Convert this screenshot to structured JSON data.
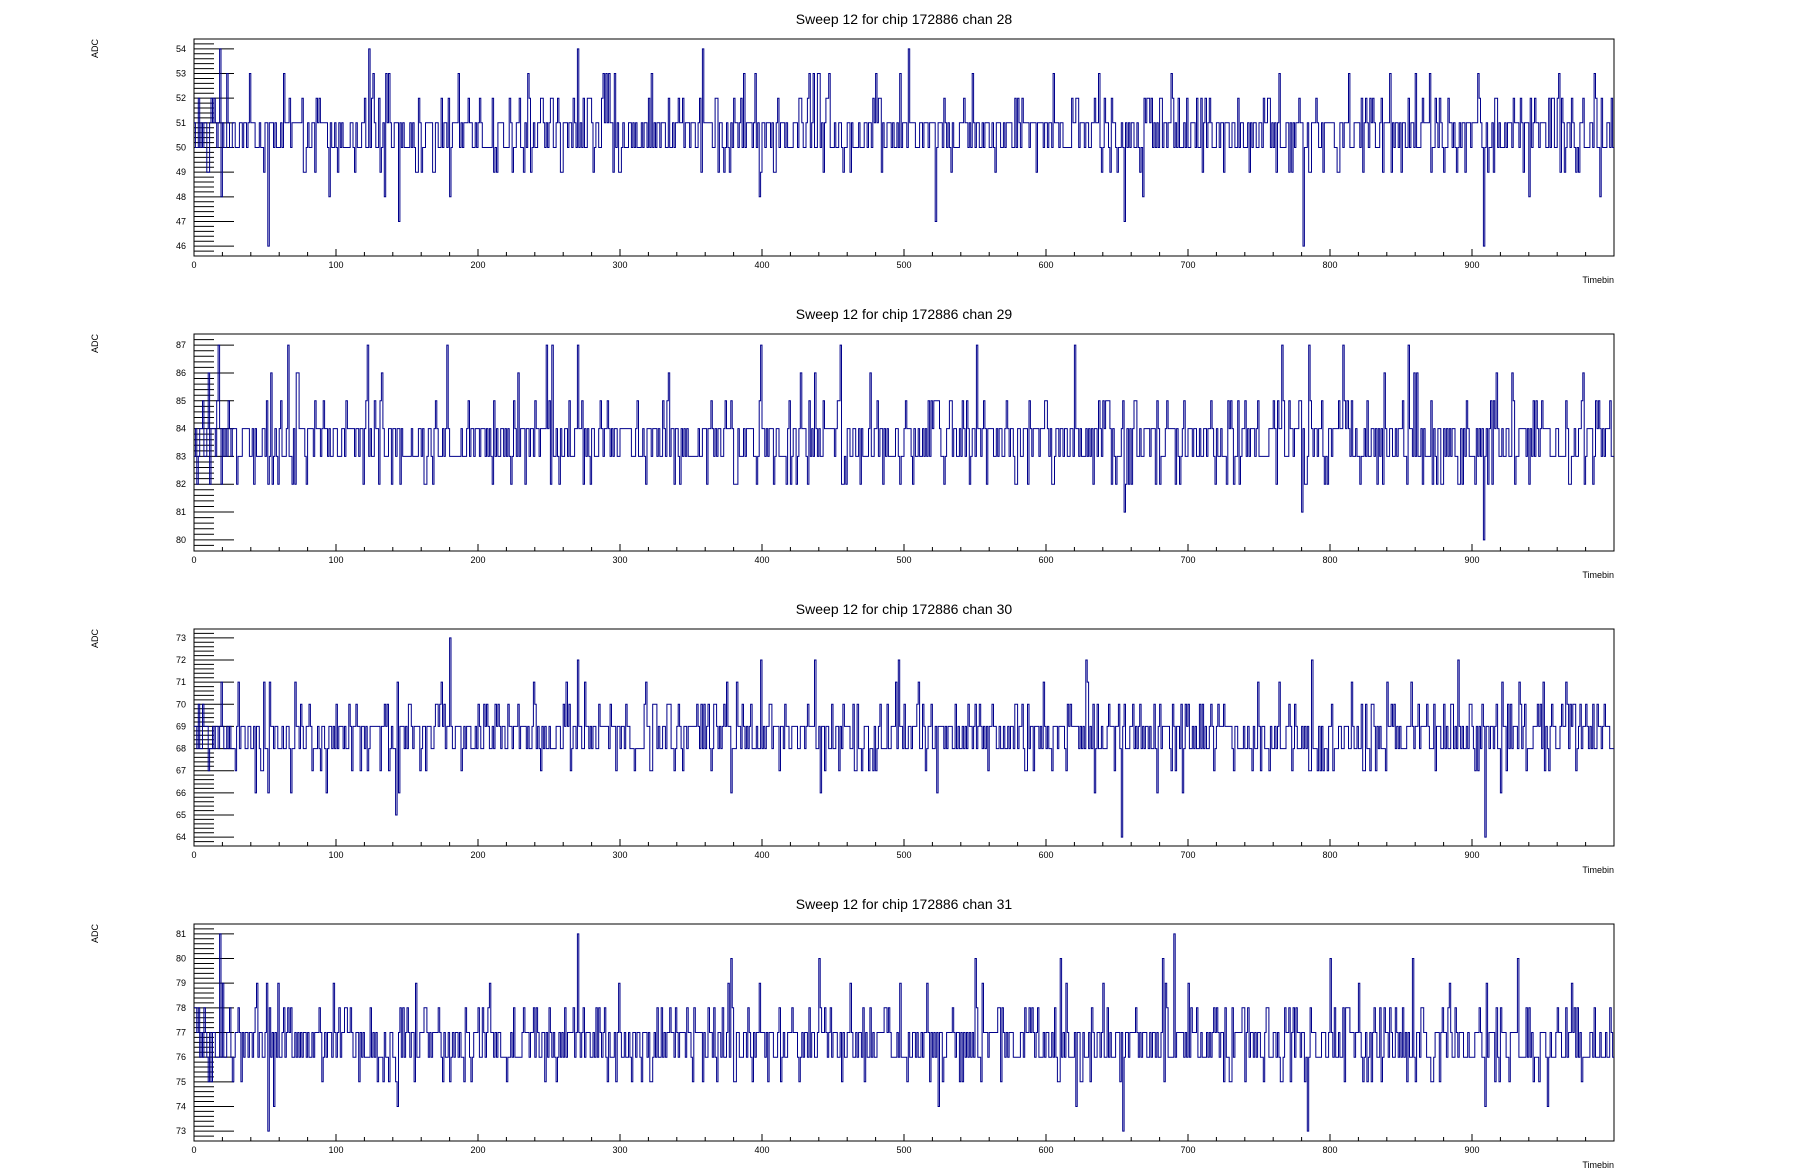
{
  "chart_data": [
    {
      "type": "line",
      "title": "Sweep 12 for chip 172886 chan 28",
      "xlabel": "Timebin",
      "ylabel": "ADC",
      "xlim": [
        0,
        1000
      ],
      "ylim": [
        45.6,
        54.4
      ],
      "x_ticks": [
        0,
        100,
        200,
        300,
        400,
        500,
        600,
        700,
        800,
        900
      ],
      "y_ticks": [
        46,
        47,
        48,
        49,
        50,
        51,
        52,
        53,
        54
      ],
      "baseline": 50.5,
      "levels": [
        48,
        49,
        50,
        51,
        52,
        53
      ],
      "spikes": [
        [
          3,
          52
        ],
        [
          10,
          49
        ],
        [
          18,
          54
        ],
        [
          19,
          48
        ],
        [
          49,
          49
        ],
        [
          52,
          46
        ],
        [
          95,
          48
        ],
        [
          123,
          54
        ],
        [
          134,
          48
        ],
        [
          144,
          47
        ],
        [
          180,
          48
        ],
        [
          224,
          49
        ],
        [
          235,
          53
        ],
        [
          270,
          54
        ],
        [
          300,
          49
        ],
        [
          358,
          54
        ],
        [
          373,
          49
        ],
        [
          395,
          53
        ],
        [
          398,
          48
        ],
        [
          440,
          53
        ],
        [
          480,
          53
        ],
        [
          503,
          54
        ],
        [
          522,
          47
        ],
        [
          548,
          53
        ],
        [
          564,
          49
        ],
        [
          637,
          53
        ],
        [
          655,
          47
        ],
        [
          668,
          48
        ],
        [
          764,
          53
        ],
        [
          781,
          46
        ],
        [
          813,
          53
        ],
        [
          860,
          53
        ],
        [
          908,
          46
        ],
        [
          940,
          48
        ],
        [
          961,
          53
        ],
        [
          973,
          49
        ],
        [
          986,
          53
        ],
        [
          990,
          48
        ]
      ],
      "color": "#00008b"
    },
    {
      "type": "line",
      "title": "Sweep 12 for chip 172886 chan 29",
      "xlabel": "Timebin",
      "ylabel": "ADC",
      "xlim": [
        0,
        1000
      ],
      "ylim": [
        79.6,
        87.4
      ],
      "x_ticks": [
        0,
        100,
        200,
        300,
        400,
        500,
        600,
        700,
        800,
        900
      ],
      "y_ticks": [
        80,
        81,
        82,
        83,
        84,
        85,
        86,
        87
      ],
      "baseline": 84.5,
      "levels": [
        82,
        83,
        84,
        85,
        86
      ],
      "spikes": [
        [
          3,
          83
        ],
        [
          10,
          86
        ],
        [
          17,
          87
        ],
        [
          19,
          82
        ],
        [
          42,
          82
        ],
        [
          52,
          82
        ],
        [
          66,
          87
        ],
        [
          122,
          87
        ],
        [
          130,
          82
        ],
        [
          145,
          82
        ],
        [
          168,
          82
        ],
        [
          178,
          87
        ],
        [
          248,
          87
        ],
        [
          252,
          87
        ],
        [
          270,
          87
        ],
        [
          338,
          82
        ],
        [
          381,
          82
        ],
        [
          399,
          87
        ],
        [
          420,
          82
        ],
        [
          455,
          87
        ],
        [
          485,
          82
        ],
        [
          551,
          87
        ],
        [
          579,
          82
        ],
        [
          620,
          87
        ],
        [
          655,
          81
        ],
        [
          660,
          82
        ],
        [
          691,
          82
        ],
        [
          766,
          87
        ],
        [
          780,
          81
        ],
        [
          785,
          87
        ],
        [
          809,
          87
        ],
        [
          855,
          87
        ],
        [
          891,
          82
        ],
        [
          908,
          80
        ],
        [
          917,
          86
        ],
        [
          940,
          82
        ]
      ],
      "color": "#00008b"
    },
    {
      "type": "line",
      "title": "Sweep 12 for chip 172886 chan 30",
      "xlabel": "Timebin",
      "ylabel": "ADC",
      "xlim": [
        0,
        1000
      ],
      "ylim": [
        63.6,
        73.4
      ],
      "x_ticks": [
        0,
        100,
        200,
        300,
        400,
        500,
        600,
        700,
        800,
        900
      ],
      "y_ticks": [
        64,
        65,
        66,
        67,
        68,
        69,
        70,
        71,
        72,
        73
      ],
      "baseline": 68.5,
      "levels": [
        67,
        68,
        69,
        70,
        71
      ],
      "spikes": [
        [
          3,
          70
        ],
        [
          10,
          67
        ],
        [
          19,
          71
        ],
        [
          43,
          66
        ],
        [
          52,
          66
        ],
        [
          68,
          66
        ],
        [
          93,
          66
        ],
        [
          142,
          65
        ],
        [
          144,
          66
        ],
        [
          180,
          73
        ],
        [
          270,
          72
        ],
        [
          310,
          67
        ],
        [
          338,
          67
        ],
        [
          378,
          66
        ],
        [
          399,
          72
        ],
        [
          437,
          72
        ],
        [
          441,
          66
        ],
        [
          496,
          72
        ],
        [
          523,
          66
        ],
        [
          598,
          71
        ],
        [
          628,
          72
        ],
        [
          634,
          66
        ],
        [
          653,
          64
        ],
        [
          678,
          66
        ],
        [
          696,
          66
        ],
        [
          749,
          71
        ],
        [
          764,
          71
        ],
        [
          787,
          72
        ],
        [
          815,
          71
        ],
        [
          890,
          72
        ],
        [
          909,
          64
        ],
        [
          920,
          66
        ],
        [
          933,
          71
        ],
        [
          950,
          71
        ],
        [
          966,
          71
        ]
      ],
      "color": "#00008b"
    },
    {
      "type": "line",
      "title": "Sweep 12 for chip 172886 chan 31",
      "xlabel": "Timebin",
      "ylabel": "ADC",
      "xlim": [
        0,
        1000
      ],
      "ylim": [
        72.6,
        81.4
      ],
      "x_ticks": [
        0,
        100,
        200,
        300,
        400,
        500,
        600,
        700,
        800,
        900
      ],
      "y_ticks": [
        73,
        74,
        75,
        76,
        77,
        78,
        79,
        80,
        81
      ],
      "baseline": 76.5,
      "levels": [
        75,
        76,
        77,
        78,
        79
      ],
      "spikes": [
        [
          3,
          78
        ],
        [
          10,
          75
        ],
        [
          18,
          81
        ],
        [
          20,
          79
        ],
        [
          44,
          79
        ],
        [
          52,
          73
        ],
        [
          56,
          74
        ],
        [
          143,
          74
        ],
        [
          270,
          81
        ],
        [
          378,
          80
        ],
        [
          398,
          79
        ],
        [
          440,
          80
        ],
        [
          524,
          74
        ],
        [
          550,
          80
        ],
        [
          555,
          79
        ],
        [
          610,
          80
        ],
        [
          621,
          74
        ],
        [
          654,
          73
        ],
        [
          682,
          80
        ],
        [
          690,
          81
        ],
        [
          700,
          79
        ],
        [
          784,
          73
        ],
        [
          800,
          80
        ],
        [
          858,
          80
        ],
        [
          909,
          74
        ],
        [
          932,
          80
        ],
        [
          953,
          74
        ],
        [
          970,
          79
        ]
      ],
      "color": "#00008b"
    }
  ]
}
